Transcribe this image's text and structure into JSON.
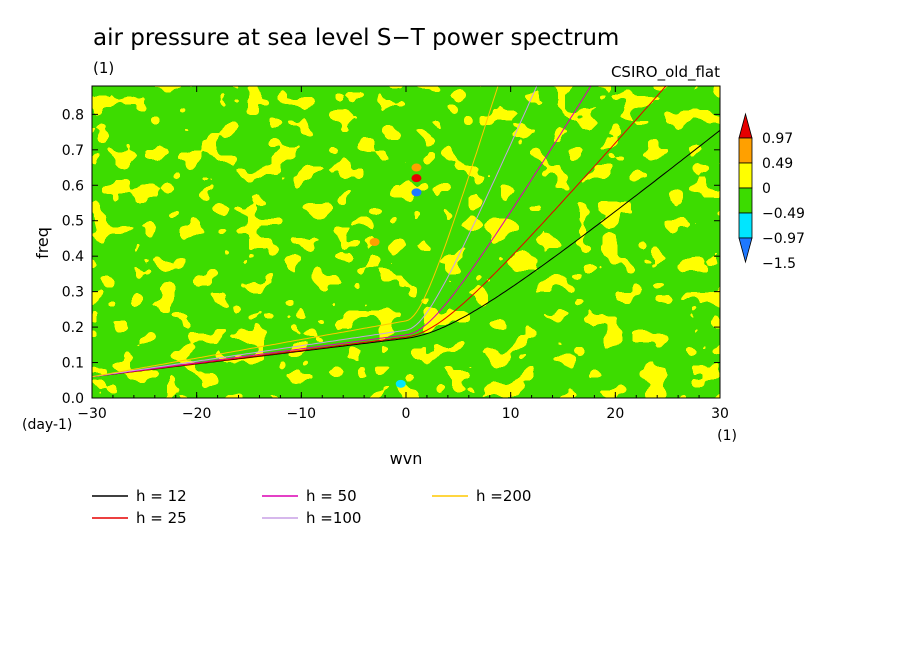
{
  "chart_data": {
    "type": "heatmap",
    "title": "air pressure at sea level S−T power spectrum",
    "subtitle_left": "(1)",
    "subtitle_right": "CSIRO_old_flat",
    "xlabel": "wvn",
    "ylabel": "freq",
    "x_unit_label": "(1)",
    "y_unit_label": "(day-1)",
    "xlim": [
      -30,
      30
    ],
    "ylim": [
      0,
      0.88
    ],
    "x_ticks": [
      -30,
      -20,
      -10,
      0,
      10,
      20,
      30
    ],
    "x_tick_labels": [
      "−30",
      "−20",
      "−10",
      "0",
      "10",
      "20",
      "30"
    ],
    "y_ticks": [
      0,
      0.1,
      0.2,
      0.3,
      0.4,
      0.5,
      0.6,
      0.7,
      0.8
    ],
    "y_tick_labels": [
      "0.0",
      "0.1",
      "0.2",
      "0.3",
      "0.4",
      "0.5",
      "0.6",
      "0.7",
      "0.8"
    ],
    "colorbar": {
      "levels": [
        -1.5,
        -0.97,
        -0.49,
        0,
        0.49,
        0.97
      ],
      "labels": [
        "−1.5",
        "−0.97",
        "−0.49",
        "0",
        "0.49",
        "0.97"
      ],
      "colors": [
        "#1e78ff",
        "#00e6ff",
        "#3cdc00",
        "#ffff00",
        "#ffa000",
        "#e60000"
      ],
      "dominant_fill": [
        "#3cdc00",
        "#ffff00"
      ]
    },
    "series": [
      {
        "name": "h = 12",
        "h": 12,
        "color": "#000000"
      },
      {
        "name": "h = 25",
        "h": 25,
        "color": "#e60000"
      },
      {
        "name": "h = 50",
        "h": 50,
        "color": "#dc00b4"
      },
      {
        "name": "h =100",
        "h": 100,
        "color": "#c8a0e6"
      },
      {
        "name": "h =200",
        "h": 200,
        "color": "#ffc800"
      }
    ],
    "features": [
      {
        "x": 1,
        "y": 0.58,
        "value": -1.5
      },
      {
        "x": 1,
        "y": 0.62,
        "value": 0.97
      },
      {
        "x": 1,
        "y": 0.65,
        "value": 0.49
      },
      {
        "x": -3,
        "y": 0.44,
        "value": 0.49
      },
      {
        "x": -0.5,
        "y": 0.04,
        "value": -0.97
      }
    ]
  }
}
